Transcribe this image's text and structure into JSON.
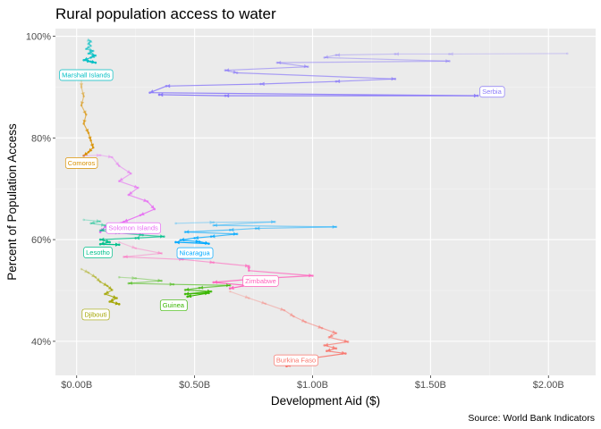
{
  "chart_data": {
    "type": "line",
    "title": "Rural population access to water",
    "xlabel": "Development Aid ($)",
    "ylabel": "Percent of Population Access",
    "caption": "Source: World Bank Indicators",
    "xlim": [
      -0.09,
      2.2
    ],
    "ylim": [
      33.3,
      101.5
    ],
    "x_ticks": [
      {
        "value": 0.0,
        "label": "$0.00B"
      },
      {
        "value": 0.5,
        "label": "$0.50B"
      },
      {
        "value": 1.0,
        "label": "$1.00B"
      },
      {
        "value": 1.5,
        "label": "$1.50B"
      },
      {
        "value": 2.0,
        "label": "$2.00B"
      }
    ],
    "y_ticks": [
      {
        "value": 40,
        "label": "40%"
      },
      {
        "value": 60,
        "label": "60%"
      },
      {
        "value": 80,
        "label": "80%"
      },
      {
        "value": 100,
        "label": "100%"
      }
    ],
    "grid": true,
    "legend": "none",
    "x_units": "billions USD",
    "y_units": "percent",
    "series": [
      {
        "name": "Marshall Islands",
        "color": "#00bfc4",
        "label_at": [
          0.04,
          92.4
        ],
        "points": [
          [
            0.05,
            99.2
          ],
          [
            0.06,
            99.0
          ],
          [
            0.05,
            98.6
          ],
          [
            0.06,
            98.1
          ],
          [
            0.04,
            97.5
          ],
          [
            0.07,
            97.1
          ],
          [
            0.05,
            96.6
          ],
          [
            0.08,
            96.2
          ],
          [
            0.06,
            95.8
          ],
          [
            0.03,
            95.3
          ],
          [
            0.06,
            95.0
          ],
          [
            0.08,
            94.8
          ]
        ]
      },
      {
        "name": "Serbia",
        "color": "#8b7bf8",
        "label_at": [
          1.76,
          89.1
        ],
        "points": [
          [
            2.08,
            96.6
          ],
          [
            1.58,
            96.5
          ],
          [
            1.35,
            96.5
          ],
          [
            1.1,
            96.3
          ],
          [
            1.05,
            95.8
          ],
          [
            1.58,
            95.1
          ],
          [
            0.85,
            94.8
          ],
          [
            0.98,
            94.0
          ],
          [
            0.63,
            93.3
          ],
          [
            0.68,
            92.8
          ],
          [
            1.35,
            91.6
          ],
          [
            1.1,
            91.1
          ],
          [
            0.78,
            90.6
          ],
          [
            0.38,
            90.2
          ],
          [
            0.31,
            88.9
          ],
          [
            1.7,
            88.3
          ],
          [
            0.63,
            88.3
          ],
          [
            0.35,
            88.5
          ]
        ]
      },
      {
        "name": "Comoros",
        "color": "#d89000",
        "label_at": [
          0.02,
          75.1
        ],
        "points": [
          [
            0.02,
            91.8
          ],
          [
            0.02,
            90.0
          ],
          [
            0.03,
            88.2
          ],
          [
            0.02,
            86.4
          ],
          [
            0.04,
            84.6
          ],
          [
            0.03,
            82.8
          ],
          [
            0.05,
            81.0
          ],
          [
            0.06,
            79.5
          ],
          [
            0.07,
            78.1
          ],
          [
            0.05,
            77.2
          ],
          [
            0.03,
            76.5
          ]
        ]
      },
      {
        "name": "Solomon Islands",
        "color": "#e76bf3",
        "label_at": [
          0.24,
          62.3
        ],
        "points": [
          [
            0.03,
            76.5
          ],
          [
            0.1,
            76.6
          ],
          [
            0.15,
            76.2
          ],
          [
            0.18,
            74.5
          ],
          [
            0.23,
            73.0
          ],
          [
            0.18,
            71.5
          ],
          [
            0.26,
            70.2
          ],
          [
            0.22,
            68.8
          ],
          [
            0.3,
            67.5
          ],
          [
            0.33,
            66.0
          ],
          [
            0.27,
            64.8
          ],
          [
            0.2,
            63.5
          ],
          [
            0.12,
            62.5
          ],
          [
            0.1,
            61.5
          ]
        ]
      },
      {
        "name": "Nicaragua",
        "color": "#00a9ff",
        "label_at": [
          0.5,
          57.4
        ],
        "points": [
          [
            0.42,
            63.2
          ],
          [
            0.58,
            63.4
          ],
          [
            0.84,
            63.5
          ],
          [
            0.58,
            62.8
          ],
          [
            1.1,
            62.5
          ],
          [
            0.76,
            62.2
          ],
          [
            0.65,
            61.9
          ],
          [
            0.46,
            61.5
          ],
          [
            0.68,
            61.1
          ],
          [
            0.57,
            60.6
          ],
          [
            0.5,
            60.3
          ],
          [
            0.44,
            59.9
          ],
          [
            0.52,
            59.6
          ],
          [
            0.56,
            59.2
          ],
          [
            0.42,
            59.5
          ]
        ]
      },
      {
        "name": "Lesotho",
        "color": "#00c08b",
        "label_at": [
          0.09,
          57.5
        ],
        "points": [
          [
            0.03,
            63.9
          ],
          [
            0.1,
            63.6
          ],
          [
            0.06,
            63.2
          ],
          [
            0.12,
            62.8
          ],
          [
            0.15,
            62.3
          ],
          [
            0.1,
            61.8
          ],
          [
            0.18,
            61.3
          ],
          [
            0.28,
            60.9
          ],
          [
            0.37,
            60.6
          ],
          [
            0.25,
            60.3
          ],
          [
            0.1,
            60.0
          ],
          [
            0.14,
            59.5
          ],
          [
            0.1,
            59.1
          ],
          [
            0.18,
            59.0
          ]
        ]
      },
      {
        "name": "Zimbabwe",
        "color": "#ff62bc",
        "label_at": [
          0.78,
          51.9
        ],
        "points": [
          [
            0.18,
            59.5
          ],
          [
            0.25,
            58.3
          ],
          [
            0.36,
            57.3
          ],
          [
            0.2,
            56.6
          ],
          [
            0.45,
            56.1
          ],
          [
            0.58,
            55.5
          ],
          [
            0.73,
            54.8
          ],
          [
            0.73,
            53.9
          ],
          [
            1.0,
            52.9
          ],
          [
            0.76,
            52.3
          ],
          [
            0.58,
            51.6
          ],
          [
            0.72,
            51.0
          ],
          [
            0.65,
            50.4
          ]
        ]
      },
      {
        "name": "Djibouti",
        "color": "#a3a500",
        "label_at": [
          0.08,
          45.3
        ],
        "points": [
          [
            0.02,
            54.2
          ],
          [
            0.05,
            53.5
          ],
          [
            0.08,
            52.6
          ],
          [
            0.1,
            51.7
          ],
          [
            0.13,
            50.9
          ],
          [
            0.15,
            50.1
          ],
          [
            0.12,
            49.3
          ],
          [
            0.17,
            48.5
          ],
          [
            0.14,
            47.8
          ],
          [
            0.18,
            47.3
          ]
        ]
      },
      {
        "name": "Guinea",
        "color": "#39b600",
        "label_at": [
          0.41,
          47.1
        ],
        "points": [
          [
            0.18,
            52.6
          ],
          [
            0.25,
            52.4
          ],
          [
            0.36,
            51.9
          ],
          [
            0.22,
            51.4
          ],
          [
            0.41,
            51.2
          ],
          [
            0.65,
            51.0
          ],
          [
            0.52,
            50.5
          ],
          [
            0.46,
            50.1
          ],
          [
            0.57,
            49.8
          ],
          [
            0.46,
            49.3
          ],
          [
            0.56,
            49.5
          ],
          [
            0.47,
            48.8
          ]
        ]
      },
      {
        "name": "Burkina Faso",
        "color": "#f8766d",
        "label_at": [
          0.93,
          36.3
        ],
        "points": [
          [
            0.65,
            49.8
          ],
          [
            0.73,
            48.5
          ],
          [
            0.8,
            47.4
          ],
          [
            0.88,
            46.1
          ],
          [
            0.92,
            44.9
          ],
          [
            0.97,
            43.8
          ],
          [
            1.04,
            42.6
          ],
          [
            1.1,
            41.6
          ],
          [
            1.07,
            40.8
          ],
          [
            1.15,
            39.9
          ],
          [
            1.05,
            39.2
          ],
          [
            1.1,
            38.6
          ],
          [
            1.06,
            38.1
          ],
          [
            1.14,
            37.6
          ],
          [
            1.0,
            36.7
          ],
          [
            0.93,
            35.7
          ],
          [
            0.89,
            35.1
          ]
        ]
      }
    ]
  }
}
